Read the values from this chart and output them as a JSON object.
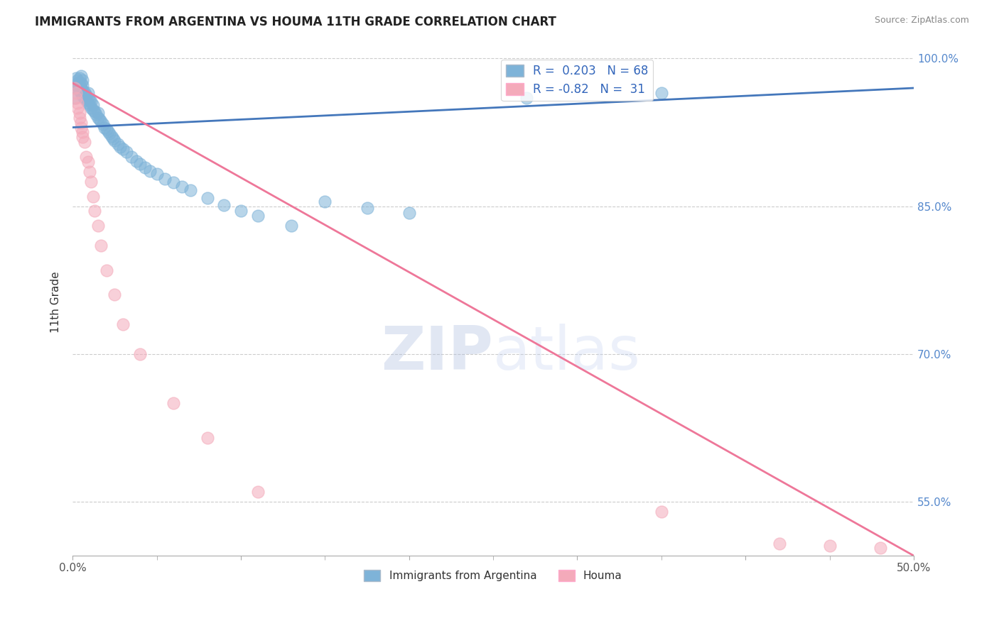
{
  "title": "IMMIGRANTS FROM ARGENTINA VS HOUMA 11TH GRADE CORRELATION CHART",
  "source": "Source: ZipAtlas.com",
  "ylabel": "11th Grade",
  "xmin": 0.0,
  "xmax": 0.5,
  "ymin": 0.495,
  "ymax": 1.01,
  "yticks": [
    0.55,
    0.7,
    0.85,
    1.0
  ],
  "ytick_labels": [
    "55.0%",
    "70.0%",
    "85.0%",
    "100.0%"
  ],
  "xticks": [
    0.0,
    0.1,
    0.2,
    0.3,
    0.4,
    0.5
  ],
  "xtick_labels": [
    "0.0%",
    "",
    "",
    "",
    "",
    "50.0%"
  ],
  "blue_color": "#7EB3D8",
  "pink_color": "#F4AABA",
  "blue_line_color": "#4477BB",
  "pink_line_color": "#EE7799",
  "R_blue": 0.203,
  "N_blue": 68,
  "R_pink": -0.82,
  "N_pink": 31,
  "watermark_zip": "ZIP",
  "watermark_atlas": "atlas",
  "background_color": "#FFFFFF",
  "blue_line_x0": 0.0,
  "blue_line_y0": 0.93,
  "blue_line_x1": 0.5,
  "blue_line_y1": 0.97,
  "pink_line_x0": 0.0,
  "pink_line_y0": 0.975,
  "pink_line_x1": 0.5,
  "pink_line_y1": 0.495,
  "blue_scatter_x": [
    0.001,
    0.002,
    0.002,
    0.003,
    0.003,
    0.003,
    0.004,
    0.004,
    0.004,
    0.005,
    0.005,
    0.005,
    0.005,
    0.006,
    0.006,
    0.006,
    0.006,
    0.007,
    0.007,
    0.008,
    0.008,
    0.009,
    0.009,
    0.009,
    0.01,
    0.01,
    0.011,
    0.011,
    0.012,
    0.012,
    0.013,
    0.014,
    0.015,
    0.015,
    0.016,
    0.017,
    0.018,
    0.019,
    0.02,
    0.021,
    0.022,
    0.023,
    0.024,
    0.025,
    0.027,
    0.028,
    0.03,
    0.032,
    0.035,
    0.038,
    0.04,
    0.043,
    0.046,
    0.05,
    0.055,
    0.06,
    0.065,
    0.07,
    0.08,
    0.09,
    0.1,
    0.11,
    0.13,
    0.15,
    0.175,
    0.2,
    0.27,
    0.35
  ],
  "blue_scatter_y": [
    0.96,
    0.97,
    0.98,
    0.972,
    0.978,
    0.975,
    0.968,
    0.974,
    0.98,
    0.965,
    0.97,
    0.975,
    0.982,
    0.962,
    0.968,
    0.973,
    0.978,
    0.96,
    0.966,
    0.958,
    0.963,
    0.955,
    0.96,
    0.965,
    0.953,
    0.958,
    0.95,
    0.956,
    0.948,
    0.953,
    0.946,
    0.943,
    0.94,
    0.945,
    0.938,
    0.936,
    0.933,
    0.93,
    0.928,
    0.926,
    0.924,
    0.921,
    0.919,
    0.917,
    0.913,
    0.91,
    0.908,
    0.905,
    0.9,
    0.896,
    0.893,
    0.889,
    0.886,
    0.883,
    0.878,
    0.874,
    0.87,
    0.866,
    0.858,
    0.851,
    0.845,
    0.84,
    0.83,
    0.855,
    0.848,
    0.843,
    0.96,
    0.965
  ],
  "pink_scatter_x": [
    0.001,
    0.002,
    0.002,
    0.003,
    0.003,
    0.004,
    0.004,
    0.005,
    0.005,
    0.006,
    0.006,
    0.007,
    0.008,
    0.009,
    0.01,
    0.011,
    0.012,
    0.013,
    0.015,
    0.017,
    0.02,
    0.025,
    0.03,
    0.04,
    0.06,
    0.08,
    0.11,
    0.35,
    0.42,
    0.45,
    0.48
  ],
  "pink_scatter_y": [
    0.97,
    0.965,
    0.96,
    0.955,
    0.95,
    0.945,
    0.94,
    0.935,
    0.93,
    0.925,
    0.92,
    0.915,
    0.9,
    0.895,
    0.885,
    0.875,
    0.86,
    0.845,
    0.83,
    0.81,
    0.785,
    0.76,
    0.73,
    0.7,
    0.65,
    0.615,
    0.56,
    0.54,
    0.507,
    0.505,
    0.503
  ]
}
